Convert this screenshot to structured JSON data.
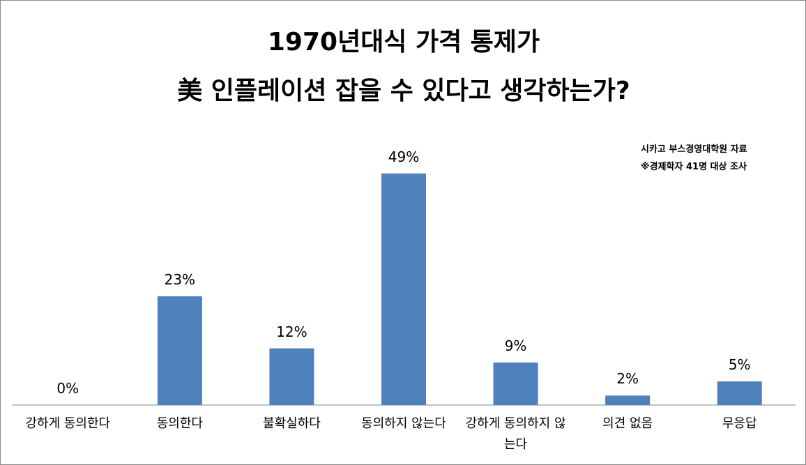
{
  "chart_data": {
    "type": "bar",
    "title": [
      "1970년대식 가격 통제가",
      "美 인플레이션 잡을 수 있다고 생각하는가?"
    ],
    "annotations": [
      "시카고 부스경영대학원 자료",
      "※경제학자 41명 대상 조사"
    ],
    "categories": [
      "강하게 동의한다",
      "동의한다",
      "불확실하다",
      "동의하지 않는다",
      "강하게 동의하지 않는다",
      "의견 없음",
      "무응답"
    ],
    "values": [
      0,
      23,
      12,
      49,
      9,
      2,
      5
    ],
    "value_labels": [
      "0%",
      "23%",
      "12%",
      "49%",
      "9%",
      "2%",
      "5%"
    ],
    "color": "#4f81bd"
  }
}
